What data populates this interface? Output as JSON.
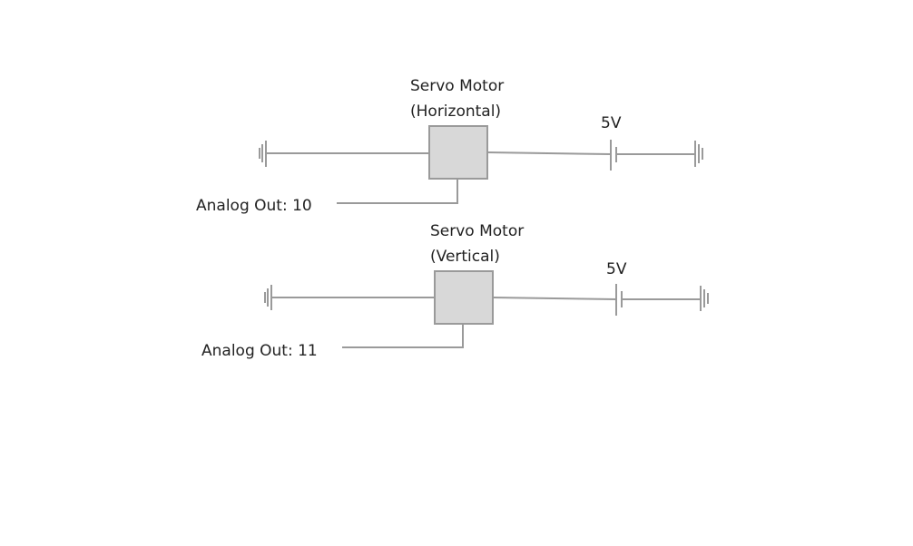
{
  "circuits": [
    {
      "servo_title": "Servo Motor",
      "servo_subtitle": "(Horizontal)",
      "voltage_label": "5V",
      "signal_label": "Analog Out: 10"
    },
    {
      "servo_title": "Servo Motor",
      "servo_subtitle": "(Vertical)",
      "voltage_label": "5V",
      "signal_label": "Analog Out: 11"
    }
  ],
  "colors": {
    "wire": "#9a9a9a",
    "servo_fill": "#d8d8d8",
    "text": "#222222",
    "background": "#ffffff"
  },
  "icons": [
    "ground-icon",
    "battery-icon",
    "servo-motor-icon"
  ]
}
